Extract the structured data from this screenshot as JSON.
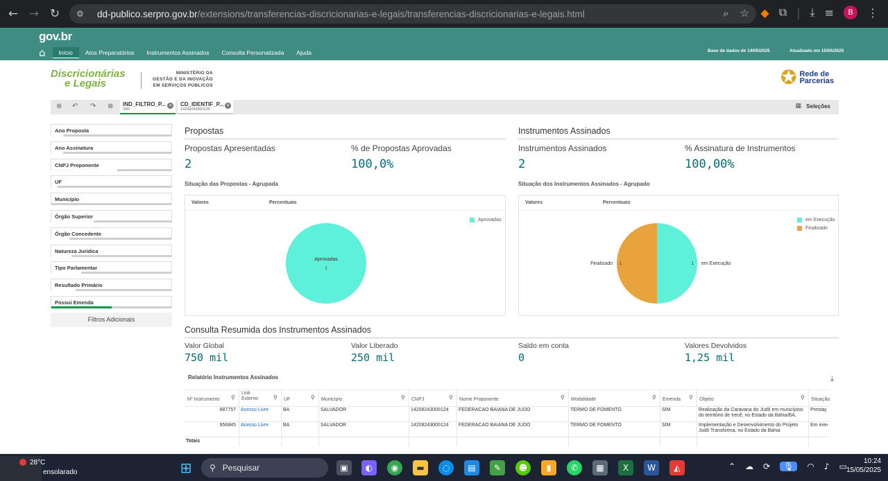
{
  "browser": {
    "url_host": "dd-publico.serpro.gov.br",
    "url_path": "/extensions/transferencias-discricionarias-e-legais/transferencias-discricionarias-e-legais.html",
    "profile_initial": "B"
  },
  "gov": {
    "logo": "gov.br",
    "nav": [
      "Início",
      "Atos Preparatórios",
      "Instrumentos Assinados",
      "Consulta Personalizada",
      "Ajuda"
    ],
    "base_info": "Base de dados de 14/05/2025",
    "updated_info": "Atualizado em 15/05/2025"
  },
  "brand": {
    "name_line1": "Discricionárias",
    "name_line2": "e Legais",
    "ministry": [
      "MINISTÉRIO DA",
      "GESTÃO E DA INOVAÇÃO",
      "EM SERVIÇOS PÚBLICOS"
    ],
    "partner_line1": "Rede de",
    "partner_line2": "Parcerias"
  },
  "selection_bar": {
    "chips": [
      {
        "title": "IND_FILTRO_P...",
        "sub": "SIM"
      },
      {
        "title": "CD_IDENTIF_P...",
        "sub": "14208243000124"
      }
    ],
    "selections_label": "Seleções"
  },
  "filters": [
    {
      "label": "Ano Proposta",
      "fill": 0.1,
      "color": "#cfcfcf"
    },
    {
      "label": "Ano Assinatura",
      "fill": 0.1,
      "color": "#cfcfcf"
    },
    {
      "label": "CNPJ Proponente",
      "fill": 0.55,
      "color": "#cfcfcf"
    },
    {
      "label": "UF",
      "fill": 0.05,
      "color": "#cfcfcf"
    },
    {
      "label": "Município",
      "fill": 0.0,
      "color": "#cfcfcf"
    },
    {
      "label": "Órgão Superior",
      "fill": 0.35,
      "color": "#cfcfcf"
    },
    {
      "label": "Órgão Concedente",
      "fill": 0.15,
      "color": "#cfcfcf"
    },
    {
      "label": "Natureza Jurídica",
      "fill": 0.17,
      "color": "#cfcfcf"
    },
    {
      "label": "Tipo Parlamentar",
      "fill": 0.25,
      "color": "#cfcfcf"
    },
    {
      "label": "Resultado Primário",
      "fill": 0.2,
      "color": "#cfcfcf"
    },
    {
      "label": "Possui Emenda",
      "fill": 0.5,
      "color": "#009845"
    }
  ],
  "filters_more": "Filtros Adicionais",
  "propostas": {
    "section": "Propostas",
    "kpi1_label": "Propostas Apresentadas",
    "kpi1_value": "2",
    "kpi2_label": "% de Propostas Aprovadas",
    "kpi2_value": "100,0%",
    "chart_title": "Situação das Propostas - Agrupada",
    "col_a": "Valores",
    "col_b": "Percentuais",
    "legend": [
      {
        "name": "Aprovadas",
        "color": "#5ef0d8"
      }
    ]
  },
  "instrumentos": {
    "section": "Instrumentos Assinados",
    "kpi1_label": "Instrumentos Assinados",
    "kpi1_value": "2",
    "kpi2_label": "% Assinatura de Instrumentos",
    "kpi2_value": "100,00%",
    "chart_title": "Situação dos Instrumentos Assinados - Agrupado",
    "col_a": "Valores",
    "col_b": "Percentuais",
    "legend": [
      {
        "name": "em Execução",
        "color": "#5ef0d8"
      },
      {
        "name": "Finalizado",
        "color": "#e8a33d"
      }
    ]
  },
  "chart_data": [
    {
      "type": "pie",
      "title": "Situação das Propostas - Agrupada",
      "categories": [
        "Aprovadas"
      ],
      "values": [
        2
      ],
      "slice_labels": [
        "Aprovadas",
        "2"
      ],
      "colors": [
        "#5ef0d8"
      ],
      "legend": "top-right"
    },
    {
      "type": "pie",
      "title": "Situação dos Instrumentos Assinados - Agrupado",
      "categories": [
        "em Execução",
        "Finalizado"
      ],
      "values": [
        1,
        1
      ],
      "value_labels": [
        "1",
        "1"
      ],
      "colors": [
        "#5ef0d8",
        "#e8a33d"
      ],
      "legend": "top-right"
    }
  ],
  "resumo": {
    "section": "Consulta Resumida dos Instrumentos Assinados",
    "items": [
      {
        "label": "Valor Global",
        "value": "750 mil"
      },
      {
        "label": "Valor Liberado",
        "value": "250 mil"
      },
      {
        "label": "Saldo em conta",
        "value": "0"
      },
      {
        "label": "Valores Devolvidos",
        "value": "1,25 mil"
      }
    ]
  },
  "report": {
    "title": "Relatório Instrumentos Assinados",
    "headers": [
      "Nº Instrumento",
      "Link\nExterno",
      "UF",
      "Município",
      "CNPJ",
      "Nome Proponente",
      "Modalidade",
      "Emenda",
      "Objeto",
      "Situação"
    ],
    "rows": [
      [
        "887757",
        "Acesso Livre",
        "BA",
        "SALVADOR",
        "14208243000124",
        "FEDERACAO BAIANA DE JUDO",
        "TERMO DE FOMENTO",
        "SIM",
        "Realização da Caravana do Judô em municípios do território de Irecê, no Estado da Bahia/BA.",
        "Prestaç"
      ],
      [
        "956845",
        "Acesso Livre",
        "BA",
        "SALVADOR",
        "14208243000124",
        "FEDERACAO BAIANA DE JUDO",
        "TERMO DE FOMENTO",
        "SIM",
        "Implementação e Desenvolvimento do Projeto Judô Transforma, no Estado da Bahia",
        "Em execu"
      ]
    ],
    "totals_label": "Totais"
  },
  "taskbar": {
    "temp": "28°C",
    "weather": "ensolarado",
    "search_placeholder": "Pesquisar",
    "time": "10:24",
    "date": "15/05/2025"
  }
}
